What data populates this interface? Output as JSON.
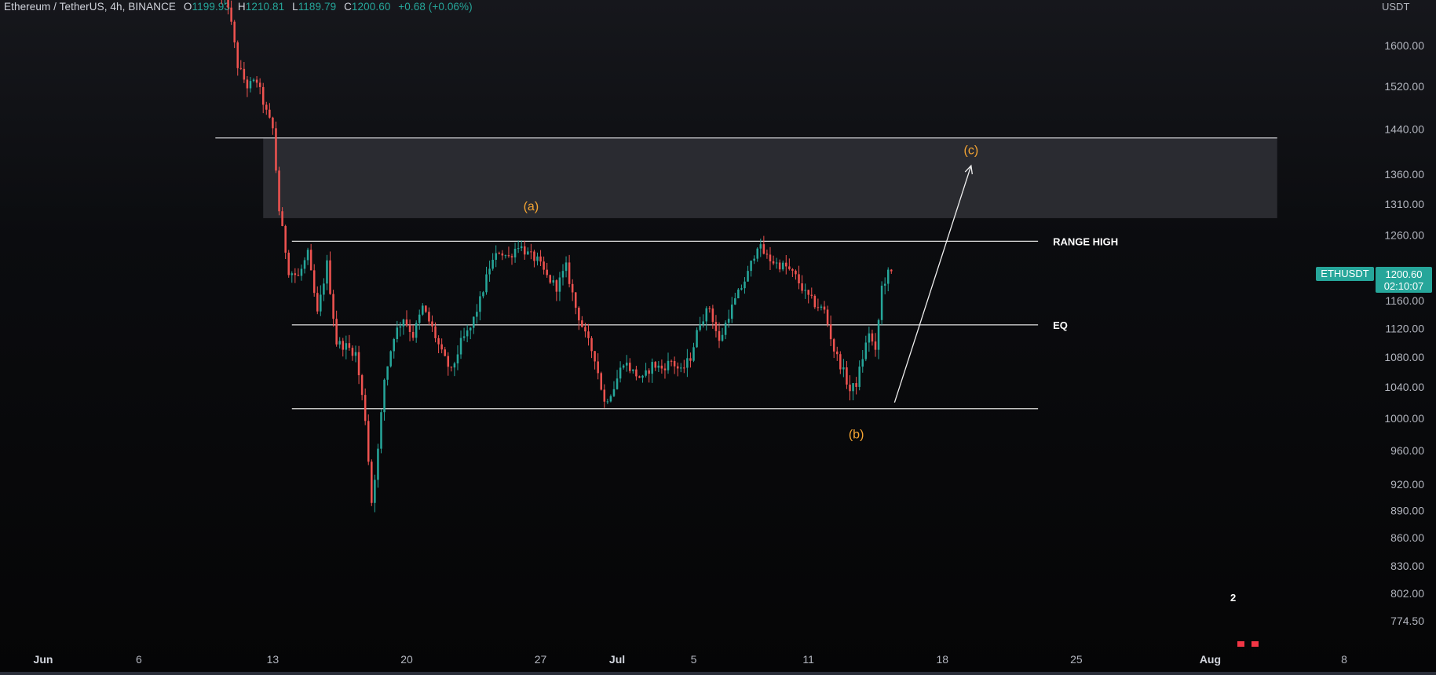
{
  "header": {
    "symbol": "Ethereum / TetherUS, 4h, BINANCE",
    "open_key": "O",
    "open": "1199.93",
    "high_key": "H",
    "high": "1210.81",
    "low_key": "L",
    "low": "1189.79",
    "close_key": "C",
    "close": "1200.60",
    "change": "+0.68 (+0.06%)"
  },
  "currency": "USDT",
  "ticker_tag": "ETHUSDT",
  "price_tag": {
    "price": "1200.60",
    "countdown": "02:10:07"
  },
  "event_count": "2",
  "colors": {
    "up": "#26a69a",
    "down": "#ef5350",
    "wave": "#f5a533",
    "line": "#d8d8d8"
  },
  "chart_data": {
    "type": "candlestick",
    "symbol": "ETHUSDT",
    "timeframe": "4h",
    "y_scale": "log",
    "ylim": [
      755,
      1700
    ],
    "xlim": [
      "2022-06-01",
      "2022-08-10"
    ],
    "y_ticks": [
      1600,
      1520,
      1440,
      1360,
      1310,
      1260,
      1160,
      1120,
      1080,
      1040,
      1000,
      960,
      920,
      890,
      860,
      830,
      802,
      774.5
    ],
    "y_tick_labels": [
      "1600.00",
      "1520.00",
      "1440.00",
      "1360.00",
      "1310.00",
      "1260.00",
      "1160.00",
      "1120.00",
      "1080.00",
      "1040.00",
      "1000.00",
      "960.00",
      "920.00",
      "890.00",
      "860.00",
      "830.00",
      "802.00",
      "774.50"
    ],
    "x_ticks": [
      {
        "date": "2022-06-01",
        "label": "Jun",
        "bold": true
      },
      {
        "date": "2022-06-06",
        "label": "6",
        "bold": false
      },
      {
        "date": "2022-06-13",
        "label": "13",
        "bold": false
      },
      {
        "date": "2022-06-20",
        "label": "20",
        "bold": false
      },
      {
        "date": "2022-06-27",
        "label": "27",
        "bold": false
      },
      {
        "date": "2022-07-01",
        "label": "Jul",
        "bold": true
      },
      {
        "date": "2022-07-05",
        "label": "5",
        "bold": false
      },
      {
        "date": "2022-07-11",
        "label": "11",
        "bold": false
      },
      {
        "date": "2022-07-18",
        "label": "18",
        "bold": false
      },
      {
        "date": "2022-07-25",
        "label": "25",
        "bold": false
      },
      {
        "date": "2022-08-01",
        "label": "Aug",
        "bold": true
      },
      {
        "date": "2022-08-08",
        "label": "8",
        "bold": false
      }
    ],
    "price_path": [
      [
        "2022-06-10T08:00",
        1700
      ],
      [
        "2022-06-10T20:00",
        1685
      ],
      [
        "2022-06-11T08:00",
        1560
      ],
      [
        "2022-06-11T20:00",
        1520
      ],
      [
        "2022-06-12T08:00",
        1530
      ],
      [
        "2022-06-12T20:00",
        1470
      ],
      [
        "2022-06-13T04:00",
        1440
      ],
      [
        "2022-06-13T12:00",
        1300
      ],
      [
        "2022-06-14T00:00",
        1205
      ],
      [
        "2022-06-14T12:00",
        1195
      ],
      [
        "2022-06-15T00:00",
        1230
      ],
      [
        "2022-06-15T12:00",
        1140
      ],
      [
        "2022-06-16T00:00",
        1215
      ],
      [
        "2022-06-16T12:00",
        1100
      ],
      [
        "2022-06-17T00:00",
        1095
      ],
      [
        "2022-06-17T12:00",
        1085
      ],
      [
        "2022-06-18T00:00",
        1000
      ],
      [
        "2022-06-18T08:00",
        900
      ],
      [
        "2022-06-18T16:00",
        960
      ],
      [
        "2022-06-19T00:00",
        1050
      ],
      [
        "2022-06-19T12:00",
        1110
      ],
      [
        "2022-06-20T00:00",
        1135
      ],
      [
        "2022-06-20T12:00",
        1110
      ],
      [
        "2022-06-21T00:00",
        1150
      ],
      [
        "2022-06-21T12:00",
        1120
      ],
      [
        "2022-06-22T00:00",
        1085
      ],
      [
        "2022-06-22T12:00",
        1060
      ],
      [
        "2022-06-23T00:00",
        1100
      ],
      [
        "2022-06-23T12:00",
        1120
      ],
      [
        "2022-06-24T00:00",
        1160
      ],
      [
        "2022-06-24T12:00",
        1210
      ],
      [
        "2022-06-25T00:00",
        1235
      ],
      [
        "2022-06-25T12:00",
        1225
      ],
      [
        "2022-06-26T00:00",
        1245
      ],
      [
        "2022-06-26T12:00",
        1230
      ],
      [
        "2022-06-27T00:00",
        1220
      ],
      [
        "2022-06-27T12:00",
        1195
      ],
      [
        "2022-06-28T00:00",
        1180
      ],
      [
        "2022-06-28T12:00",
        1210
      ],
      [
        "2022-06-29T00:00",
        1150
      ],
      [
        "2022-06-29T12:00",
        1110
      ],
      [
        "2022-06-30T00:00",
        1080
      ],
      [
        "2022-06-30T12:00",
        1020
      ],
      [
        "2022-07-01T00:00",
        1040
      ],
      [
        "2022-07-01T12:00",
        1075
      ],
      [
        "2022-07-02T00:00",
        1060
      ],
      [
        "2022-07-02T12:00",
        1050
      ],
      [
        "2022-07-03T00:00",
        1070
      ],
      [
        "2022-07-03T12:00",
        1065
      ],
      [
        "2022-07-04T00:00",
        1075
      ],
      [
        "2022-07-04T12:00",
        1060
      ],
      [
        "2022-07-05T00:00",
        1080
      ],
      [
        "2022-07-05T12:00",
        1130
      ],
      [
        "2022-07-06T00:00",
        1150
      ],
      [
        "2022-07-06T12:00",
        1100
      ],
      [
        "2022-07-07T00:00",
        1140
      ],
      [
        "2022-07-07T12:00",
        1170
      ],
      [
        "2022-07-08T00:00",
        1200
      ],
      [
        "2022-07-08T12:00",
        1245
      ],
      [
        "2022-07-09T00:00",
        1225
      ],
      [
        "2022-07-09T12:00",
        1215
      ],
      [
        "2022-07-10T00:00",
        1210
      ],
      [
        "2022-07-10T12:00",
        1195
      ],
      [
        "2022-07-11T00:00",
        1170
      ],
      [
        "2022-07-11T12:00",
        1155
      ],
      [
        "2022-07-12T00:00",
        1145
      ],
      [
        "2022-07-12T12:00",
        1090
      ],
      [
        "2022-07-13T00:00",
        1060
      ],
      [
        "2022-07-13T08:00",
        1035
      ],
      [
        "2022-07-13T16:00",
        1045
      ],
      [
        "2022-07-14T00:00",
        1080
      ],
      [
        "2022-07-14T08:00",
        1115
      ],
      [
        "2022-07-14T16:00",
        1085
      ],
      [
        "2022-07-15T00:00",
        1180
      ],
      [
        "2022-07-15T08:00",
        1200
      ]
    ],
    "zones": [
      {
        "name": "supply",
        "y_low": 1287,
        "y_high": 1424,
        "start": "2022-06-12T12:00",
        "end": "2022-08-04T12:00",
        "top_line_start": "2022-06-10T00:00"
      }
    ],
    "levels": [
      {
        "label": "RANGE HIGH",
        "price": 1250,
        "start": "2022-06-14T00:00",
        "end": "2022-07-23T00:00"
      },
      {
        "label": "EQ",
        "price": 1125,
        "start": "2022-06-14T00:00",
        "end": "2022-07-23T00:00"
      },
      {
        "label": "",
        "price": 1012,
        "start": "2022-06-14T00:00",
        "end": "2022-07-23T00:00"
      }
    ],
    "wave_labels": [
      {
        "text": "(a)",
        "date": "2022-06-26T12:00",
        "price": 1300
      },
      {
        "text": "(b)",
        "date": "2022-07-13T12:00",
        "price": 975
      },
      {
        "text": "(c)",
        "date": "2022-07-19T12:00",
        "price": 1395
      }
    ],
    "projection": {
      "from_date": "2022-07-15T12:00",
      "from_price": 1020,
      "to_date": "2022-07-19T12:00",
      "to_price": 1375
    }
  }
}
